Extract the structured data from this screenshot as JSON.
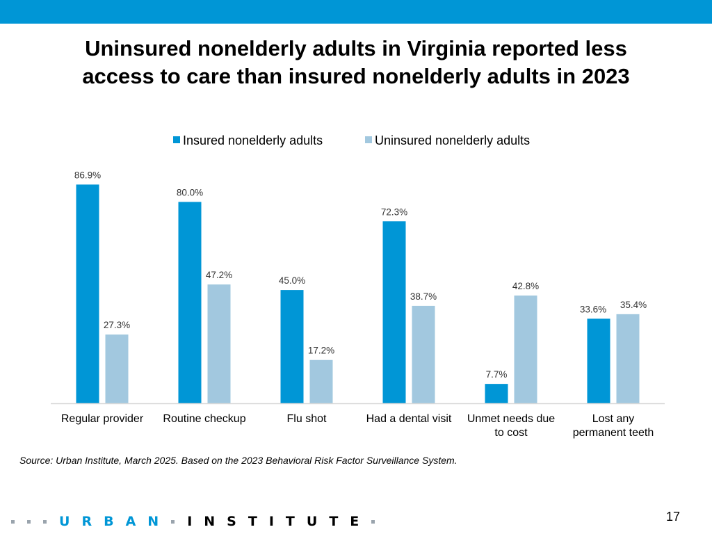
{
  "colors": {
    "header_bar": "#0096d6",
    "insured": "#0096d6",
    "uninsured": "#a2c8df",
    "axis": "#d9d9d9",
    "logo_dots": "#9aa4ad",
    "logo_urban": "#0096d6",
    "logo_institute": "#000000"
  },
  "title_lines": [
    "Uninsured nonelderly adults in Virginia reported less",
    "access to care than insured nonelderly adults in 2023"
  ],
  "chart_data": {
    "type": "bar",
    "title": "Uninsured nonelderly adults in Virginia reported less access to care than insured nonelderly adults in 2023",
    "categories": [
      [
        "Regular provider"
      ],
      [
        "Routine checkup"
      ],
      [
        "Flu shot"
      ],
      [
        "Had a dental visit"
      ],
      [
        "Unmet needs due",
        "to cost"
      ],
      [
        "Lost any",
        "permanent teeth"
      ]
    ],
    "series": [
      {
        "name": "Insured nonelderly adults",
        "values": [
          86.9,
          80.0,
          45.0,
          72.3,
          7.7,
          33.6
        ],
        "labels": [
          "86.9%",
          "80.0%",
          "45.0%",
          "72.3%",
          "7.7%",
          "33.6%"
        ]
      },
      {
        "name": "Uninsured nonelderly adults",
        "values": [
          27.3,
          47.2,
          17.2,
          38.7,
          42.8,
          35.4
        ],
        "labels": [
          "27.3%",
          "47.2%",
          "17.2%",
          "38.7%",
          "42.8%",
          "35.4%"
        ]
      }
    ],
    "ylim": [
      0,
      100
    ],
    "xlabel": "",
    "ylabel": "",
    "grid": false,
    "legend_position": "top-center"
  },
  "source": "Source: Urban Institute, March 2025. Based on the 2023 Behavioral Risk Factor Surveillance System.",
  "page_number": "17",
  "footer": {
    "logo_word_1": "URBAN",
    "logo_word_2": "INSTITUTE"
  }
}
